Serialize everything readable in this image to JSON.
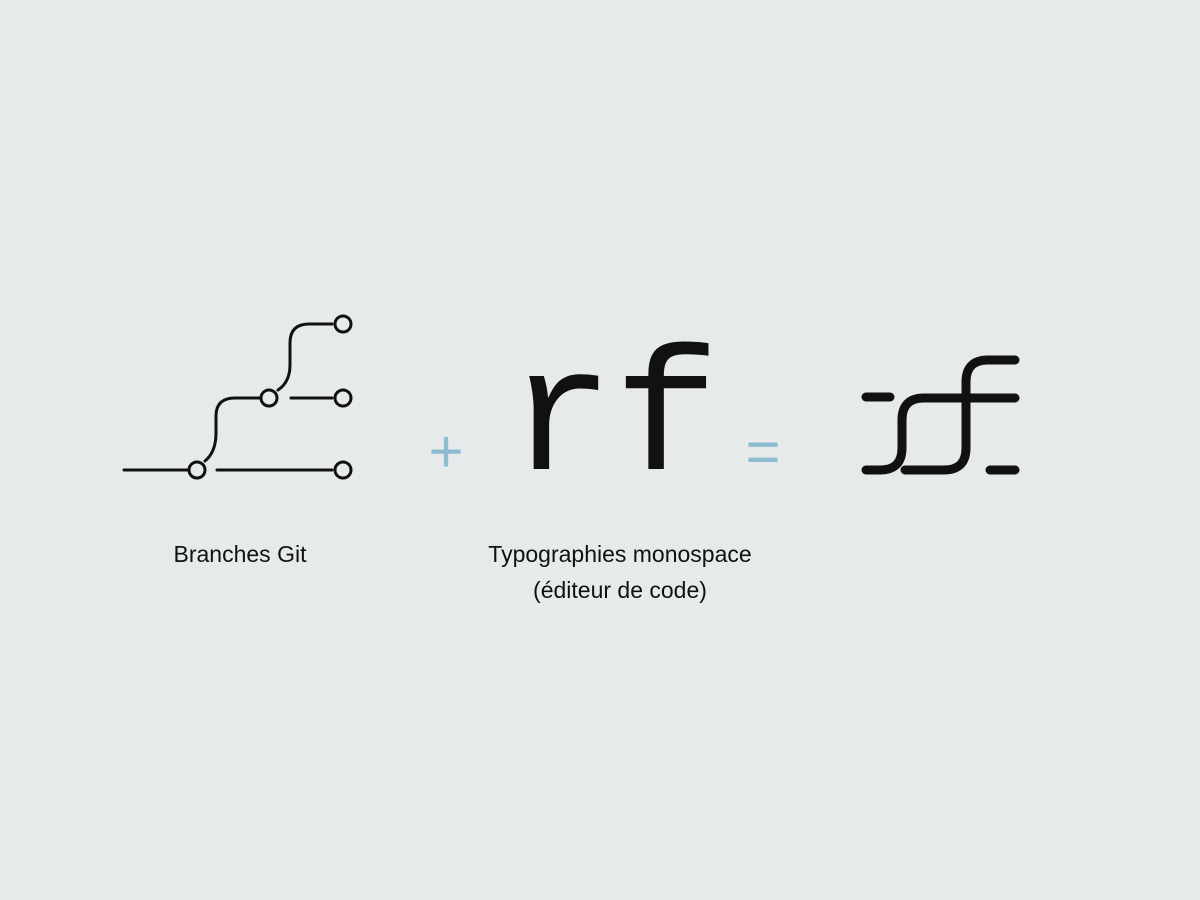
{
  "operators": {
    "plus": "+",
    "equals": "="
  },
  "monospace_sample": {
    "text": "rf"
  },
  "captions": {
    "git_branches": "Branches Git",
    "monospace_line1": "Typographies monospace",
    "monospace_line2": "(éditeur de code)"
  },
  "colors": {
    "background": "#e6eaeb",
    "ink": "#111111",
    "operator": "#8cbccf"
  },
  "icons": {
    "git_branches": "git-branches-icon",
    "result_logo": "rf-ligature-logo"
  }
}
